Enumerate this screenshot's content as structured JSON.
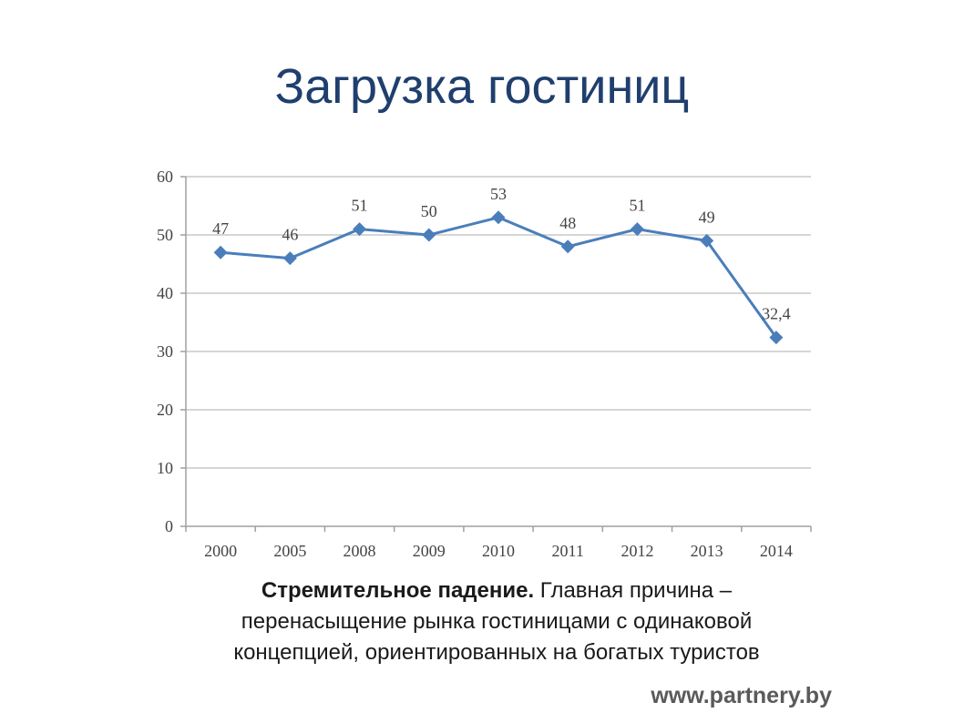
{
  "slide": {
    "title": "Загрузка гостиниц",
    "caption_bold": "Стремительное падение.",
    "caption_text_1": " Главная причина –",
    "caption_text_2": "перенасыщение рынка гостиницами с одинаковой",
    "caption_text_3": "концепцией, ориентированных  на богатых туристов",
    "website": "www.partnery.by"
  },
  "chart_data": {
    "type": "line",
    "categories": [
      "2000",
      "2005",
      "2008",
      "2009",
      "2010",
      "2011",
      "2012",
      "2013",
      "2014"
    ],
    "values": [
      47,
      46,
      51,
      50,
      53,
      48,
      51,
      49,
      32.4
    ],
    "data_labels": [
      "47",
      "46",
      "51",
      "50",
      "53",
      "48",
      "51",
      "49",
      "32,4"
    ],
    "y_ticks": [
      "0",
      "10",
      "20",
      "30",
      "40",
      "50",
      "60"
    ],
    "ylim": [
      0,
      60
    ],
    "grid": true,
    "legend": "none",
    "marker": "diamond",
    "color": "#4a7ebb",
    "grid_color": "#c8c8c8",
    "axis_color": "#a0a0a0"
  }
}
